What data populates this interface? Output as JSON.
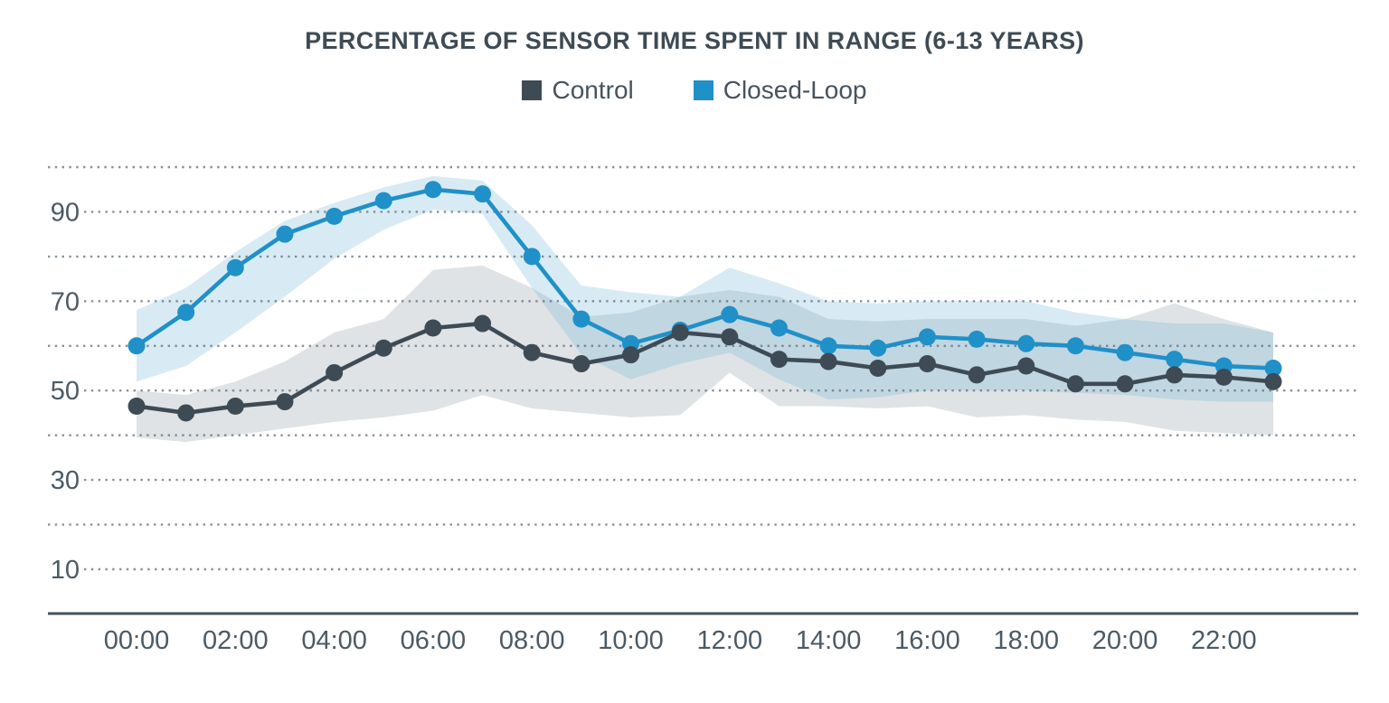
{
  "title": "PERCENTAGE OF SENSOR TIME SPENT IN RANGE (6-13 YEARS)",
  "axis": {
    "text_color": "#4B5A64",
    "axis_line_color": "#44515A",
    "grid_color": "#5F6E78"
  },
  "chart_data": {
    "type": "line",
    "title": "PERCENTAGE OF SENSOR TIME SPENT IN RANGE (6-13 YEARS)",
    "categories": [
      "00:00",
      "01:00",
      "02:00",
      "03:00",
      "04:00",
      "05:00",
      "06:00",
      "07:00",
      "08:00",
      "09:00",
      "10:00",
      "11:00",
      "12:00",
      "13:00",
      "14:00",
      "15:00",
      "16:00",
      "17:00",
      "18:00",
      "19:00",
      "20:00",
      "21:00",
      "22:00",
      "23:00"
    ],
    "x_tick_labels": [
      "00:00",
      "02:00",
      "04:00",
      "06:00",
      "08:00",
      "10:00",
      "12:00",
      "14:00",
      "16:00",
      "18:00",
      "20:00",
      "22:00"
    ],
    "yticks_labeled": [
      10,
      30,
      50,
      70,
      90
    ],
    "gridlines": [
      10,
      20,
      30,
      40,
      50,
      60,
      70,
      80,
      90,
      100
    ],
    "ylim": [
      10,
      100
    ],
    "grid": "dotted-horizontal",
    "legend_position": "top",
    "series": [
      {
        "name": "Control",
        "color": "#3E4B55",
        "band_fill": "rgba(150,163,170,0.30)",
        "values": [
          46.5,
          45,
          46.5,
          47.5,
          54,
          59.5,
          64,
          65,
          58.5,
          56,
          58,
          63,
          62,
          57,
          56.5,
          55,
          56,
          53.5,
          55.5,
          51.5,
          51.5,
          53.5,
          53,
          52
        ],
        "band_upper": [
          50,
          49,
          52,
          56.5,
          63,
          66,
          77,
          78,
          73,
          66.5,
          67.5,
          71,
          72.5,
          71,
          66,
          65.5,
          66,
          66,
          66,
          64.5,
          66,
          69.5,
          66,
          63
        ],
        "band_lower": [
          39.5,
          38.5,
          40,
          41.5,
          43,
          44,
          45.5,
          49,
          46,
          45,
          44,
          44.5,
          54,
          46.5,
          46.5,
          46,
          46.5,
          44,
          44.5,
          43.5,
          43,
          41,
          40.5,
          40
        ]
      },
      {
        "name": "Closed-Loop",
        "color": "#2090C8",
        "band_fill": "rgba(110,180,215,0.27)",
        "values": [
          60,
          67.5,
          77.5,
          85,
          89,
          92.5,
          95,
          94,
          80,
          66,
          60.5,
          63.5,
          67,
          64,
          60,
          59.5,
          62,
          61.5,
          60.5,
          60,
          58.5,
          57,
          55.5,
          55
        ],
        "band_upper": [
          68,
          73,
          81,
          88,
          92,
          95.5,
          98,
          97,
          87,
          73.5,
          72,
          71,
          77.5,
          74,
          70,
          69.5,
          70,
          70,
          70,
          67.5,
          66,
          65,
          65,
          63
        ],
        "band_lower": [
          52,
          55.5,
          63,
          71,
          79.5,
          86,
          90.5,
          89.5,
          73,
          58,
          52.5,
          56,
          58.5,
          52.5,
          48,
          48.5,
          50,
          50,
          50,
          49.5,
          49,
          48,
          47.5,
          47.5
        ]
      }
    ]
  }
}
